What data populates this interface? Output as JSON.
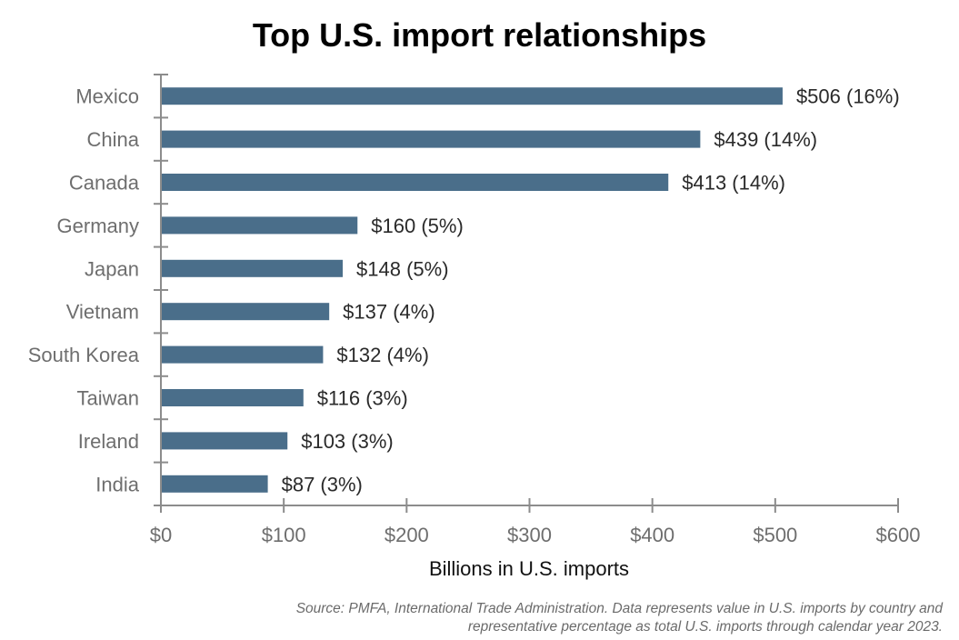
{
  "chart_data": {
    "type": "bar",
    "orientation": "horizontal",
    "title": "Top U.S. import relationships",
    "xlabel": "Billions in U.S. imports",
    "ylabel": "",
    "categories": [
      "Mexico",
      "China",
      "Canada",
      "Germany",
      "Japan",
      "Vietnam",
      "South Korea",
      "Taiwan",
      "Ireland",
      "India"
    ],
    "values": [
      506,
      439,
      413,
      160,
      148,
      137,
      132,
      116,
      103,
      87
    ],
    "data_labels": [
      "$506 (16%)",
      "$439 (14%)",
      "$413 (14%)",
      "$160 (5%)",
      "$148 (5%)",
      "$137 (4%)",
      "$132 (4%)",
      "$116 (3%)",
      "$103 (3%)",
      "$87 (3%)"
    ],
    "xlim": [
      0,
      600
    ],
    "x_ticks": [
      0,
      100,
      200,
      300,
      400,
      500,
      600
    ],
    "x_tick_labels": [
      "$0",
      "$100",
      "$200",
      "$300",
      "$400",
      "$500",
      "$600"
    ],
    "grid": false,
    "legend": "none",
    "bar_color": "#4a6e8a",
    "axis_color": "#8c8c8c"
  },
  "source_note": "Source: PMFA, International Trade Administration. Data represents value in U.S. imports by country and representative percentage as total U.S. imports through calendar year 2023."
}
